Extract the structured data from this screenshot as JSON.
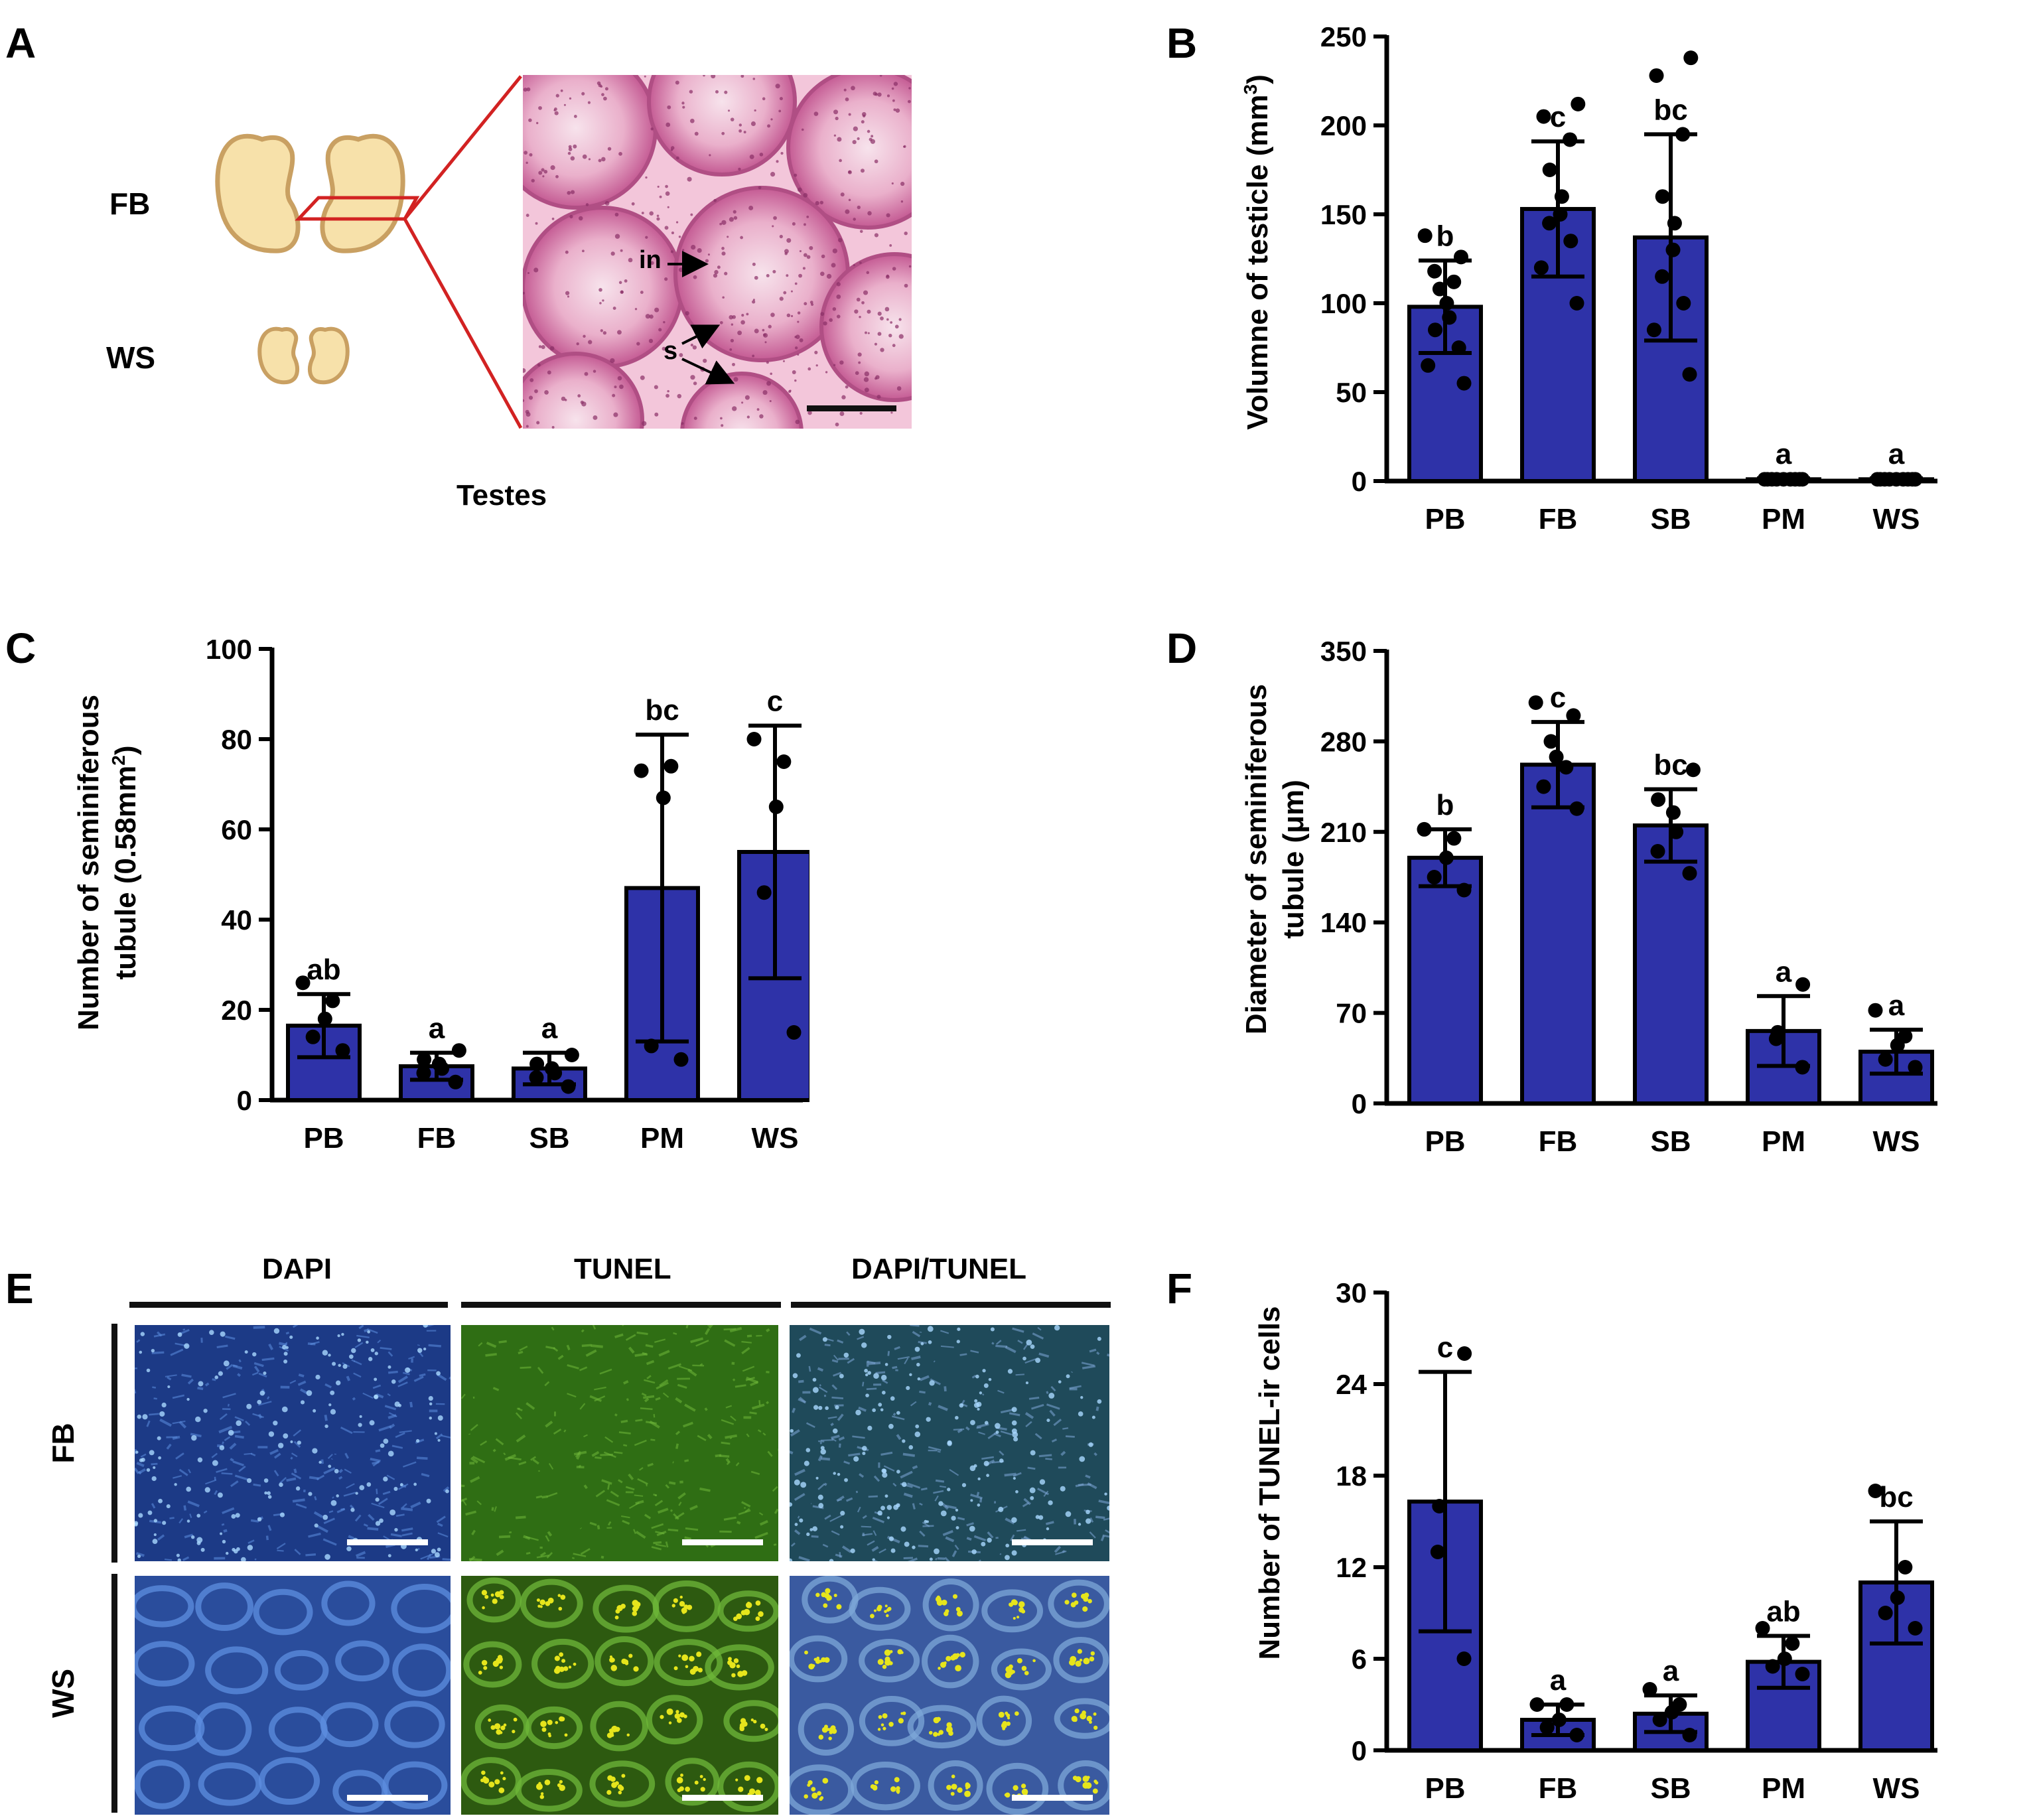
{
  "panel_labels": [
    "A",
    "B",
    "C",
    "D",
    "E",
    "F"
  ],
  "colors": {
    "bar_fill": "#2e32a8",
    "bar_stroke": "#000000",
    "testis_fill": "#f7e1aa",
    "testis_stroke": "#c9a062",
    "zoom_line": "#d22222",
    "he_background": "#f3c6da",
    "he_stain": "#c45a93",
    "dapi": "#2d5fbf",
    "tunel": "#3f8f1c",
    "tunel_positive": "#e6e51c"
  },
  "panel_a": {
    "row_labels": [
      "FB",
      "WS"
    ],
    "caption": "Testes",
    "annotations": [
      "in",
      "s"
    ]
  },
  "panel_e": {
    "columns": [
      "DAPI",
      "TUNEL",
      "DAPI/TUNEL"
    ],
    "rows": [
      "FB",
      "WS"
    ]
  },
  "chart_data": [
    {
      "panel": "B",
      "type": "bar",
      "categories": [
        "PB",
        "FB",
        "SB",
        "PM",
        "WS"
      ],
      "values": [
        98,
        153,
        137,
        1,
        1
      ],
      "errors": [
        26,
        38,
        58,
        0.5,
        0.5
      ],
      "points": [
        [
          55,
          65,
          75,
          85,
          92,
          100,
          108,
          112,
          118,
          126,
          138
        ],
        [
          100,
          120,
          135,
          145,
          150,
          160,
          175,
          192,
          205,
          212
        ],
        [
          60,
          85,
          100,
          115,
          130,
          145,
          160,
          195,
          228,
          238
        ],
        [
          1,
          1,
          1,
          1,
          1,
          1,
          1,
          1,
          1
        ],
        [
          1,
          1,
          1,
          1,
          1,
          1,
          1,
          1,
          1
        ]
      ],
      "significance": [
        "b",
        "c",
        "bc",
        "a",
        "a"
      ],
      "ylabel": "Volumne of testicle (mm",
      "ylabel_sup": "3",
      "ylabel_end": ")",
      "ylim": [
        0,
        250
      ],
      "yticks": [
        0,
        50,
        100,
        150,
        200,
        250
      ]
    },
    {
      "panel": "C",
      "type": "bar",
      "categories": [
        "PB",
        "FB",
        "SB",
        "PM",
        "WS"
      ],
      "values": [
        16.5,
        7.5,
        7.0,
        47,
        55
      ],
      "errors": [
        7,
        3,
        3.5,
        34,
        28
      ],
      "points": [
        [
          11,
          14,
          18,
          22,
          26
        ],
        [
          4,
          6,
          7,
          8,
          9,
          11
        ],
        [
          3,
          5,
          6,
          7,
          8,
          10
        ],
        [
          9,
          12,
          67,
          74,
          73
        ],
        [
          15,
          46,
          65,
          75,
          80
        ]
      ],
      "significance": [
        "ab",
        "a",
        "a",
        "bc",
        "c"
      ],
      "ylabel_line1": "Number of seminiferous",
      "ylabel_line2": "tubule (0.58mm",
      "ylabel_sup": "2",
      "ylabel_end": ")",
      "ylim": [
        0,
        100
      ],
      "yticks": [
        0,
        20,
        40,
        60,
        80,
        100
      ]
    },
    {
      "panel": "D",
      "type": "bar",
      "categories": [
        "PB",
        "FB",
        "SB",
        "PM",
        "WS"
      ],
      "values": [
        190,
        262,
        215,
        56,
        40
      ],
      "errors": [
        22,
        33,
        28,
        27,
        17
      ],
      "points": [
        [
          165,
          175,
          190,
          205,
          212
        ],
        [
          228,
          245,
          260,
          268,
          280,
          300,
          310
        ],
        [
          178,
          195,
          210,
          225,
          235,
          258
        ],
        [
          28,
          50,
          55,
          92
        ],
        [
          28,
          34,
          45,
          52,
          72
        ]
      ],
      "significance": [
        "b",
        "c",
        "bc",
        "a",
        "a"
      ],
      "ylabel_line1": "Diameter of seminiferous",
      "ylabel_line2": "tubule (μm)",
      "ylim": [
        0,
        350
      ],
      "yticks": [
        0,
        70,
        140,
        210,
        280,
        350
      ]
    },
    {
      "panel": "F",
      "type": "bar",
      "categories": [
        "PB",
        "FB",
        "SB",
        "PM",
        "WS"
      ],
      "values": [
        16.3,
        2.0,
        2.4,
        5.8,
        11.0
      ],
      "errors": [
        8.5,
        1.0,
        1.2,
        1.7,
        4.0
      ],
      "points": [
        [
          6,
          13,
          16,
          26
        ],
        [
          1,
          1.5,
          2,
          3,
          3
        ],
        [
          1,
          2,
          2.5,
          3,
          4
        ],
        [
          5,
          5.5,
          6,
          7,
          8
        ],
        [
          8,
          9,
          10,
          12,
          17
        ]
      ],
      "significance": [
        "c",
        "a",
        "a",
        "ab",
        "bc"
      ],
      "ylabel": "Number of TUNEL-ir cells",
      "ylim": [
        0,
        30
      ],
      "yticks": [
        0,
        6,
        12,
        18,
        24,
        30
      ]
    }
  ]
}
